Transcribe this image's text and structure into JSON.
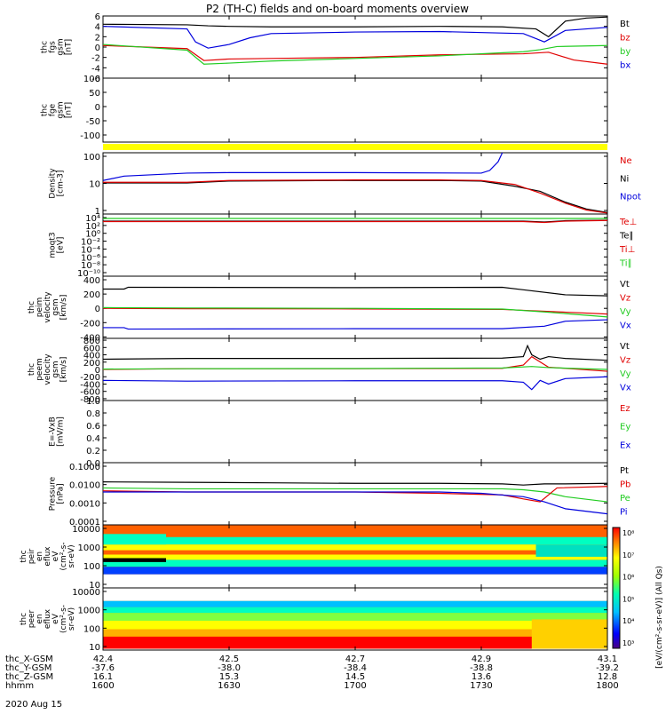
{
  "title": "P2 (TH-C) fields and on-board moments overview",
  "colors": {
    "black": "#000000",
    "red": "#e00000",
    "green": "#22cc22",
    "blue": "#0000dd",
    "yellow": "#ffff00"
  },
  "time": {
    "ticks": [
      "1600",
      "1630",
      "1700",
      "1730",
      "1800"
    ],
    "range": [
      0,
      120
    ],
    "date": "2020 Aug 15"
  },
  "orbit": {
    "labels": [
      "thc_X-GSM",
      "thc_Y-GSM",
      "thc_Z-GSM",
      "hhmm"
    ],
    "x_gsm": [
      "42.4",
      "42.5",
      "42.7",
      "42.9",
      "43.1"
    ],
    "y_gsm": [
      "-37.6",
      "-38.0",
      "-38.4",
      "-38.8",
      "-39.2"
    ],
    "z_gsm": [
      "16.1",
      "15.3",
      "14.5",
      "13.6",
      "12.8"
    ]
  },
  "chart_data": [
    {
      "id": "fgs",
      "type": "line",
      "ylabel": [
        "thc",
        "fgs",
        "gsm",
        "[nT]"
      ],
      "ylim": [
        -6,
        6
      ],
      "yticks": [
        "6",
        "4",
        "2",
        "0",
        "-2",
        "-4",
        "-6"
      ],
      "legend": [
        {
          "name": "Bt",
          "color": "#000000"
        },
        {
          "name": "bz",
          "color": "#e00000"
        },
        {
          "name": "by",
          "color": "#22cc22"
        },
        {
          "name": "bx",
          "color": "#0000dd"
        }
      ],
      "series": [
        {
          "name": "Bt",
          "x": [
            0,
            20,
            25,
            30,
            40,
            60,
            80,
            95,
            103,
            106,
            110,
            115,
            120
          ],
          "y": [
            4.4,
            4.3,
            4.1,
            4.0,
            3.9,
            3.9,
            4.0,
            3.9,
            3.5,
            2.0,
            5.0,
            5.6,
            5.8
          ]
        },
        {
          "name": "bz",
          "x": [
            0,
            20,
            24,
            30,
            40,
            60,
            80,
            100,
            106,
            112,
            120
          ],
          "y": [
            0.3,
            -0.3,
            -2.6,
            -2.3,
            -2.2,
            -2.0,
            -1.5,
            -1.3,
            -1.0,
            -2.5,
            -3.3
          ]
        },
        {
          "name": "by",
          "x": [
            0,
            20,
            24,
            30,
            40,
            60,
            80,
            100,
            104,
            108,
            120
          ],
          "y": [
            0.5,
            -0.6,
            -3.3,
            -3.1,
            -2.7,
            -2.2,
            -1.7,
            -0.9,
            -0.5,
            0.1,
            0.3
          ]
        },
        {
          "name": "bx",
          "x": [
            0,
            20,
            22,
            25,
            30,
            35,
            40,
            60,
            80,
            100,
            105,
            110,
            120
          ],
          "y": [
            4.0,
            3.5,
            1.0,
            -0.2,
            0.5,
            1.8,
            2.6,
            2.9,
            3.0,
            2.6,
            1.0,
            3.2,
            3.8
          ]
        }
      ]
    },
    {
      "id": "fgs-hi",
      "type": "line",
      "ylabel": [
        "thc",
        "fge",
        "gsm",
        "[nT]"
      ],
      "ylim": [
        -125,
        100
      ],
      "yticks": [
        "100",
        "50",
        "0",
        "-50",
        "-100"
      ],
      "legend": [],
      "series": []
    },
    {
      "id": "density",
      "type": "line",
      "ylabel": [
        "Density",
        "[cm-3]"
      ],
      "ylim": [
        0.3,
        150
      ],
      "yscale": "log",
      "yticks": [
        "100",
        "10",
        "1"
      ],
      "legend": [
        {
          "name": "Ne",
          "color": "#e00000"
        },
        {
          "name": "Ni",
          "color": "#000000"
        },
        {
          "name": "Npot",
          "color": "#0000dd"
        }
      ],
      "series": [
        {
          "name": "Npot",
          "x": [
            0,
            5,
            20,
            30,
            60,
            90,
            92,
            94,
            95
          ],
          "y": [
            9,
            14,
            19,
            20,
            20,
            19,
            25,
            60,
            200
          ]
        },
        {
          "name": "Ni",
          "x": [
            0,
            20,
            30,
            60,
            80,
            90,
            98,
            104,
            110,
            115,
            120
          ],
          "y": [
            7,
            7,
            8.5,
            9,
            9,
            8.5,
            5,
            3,
            1,
            0.5,
            0.35
          ]
        },
        {
          "name": "Ne",
          "x": [
            0,
            20,
            30,
            60,
            80,
            90,
            98,
            104,
            110,
            115,
            120
          ],
          "y": [
            7.5,
            7.5,
            9,
            9.5,
            9.5,
            9,
            6,
            2.5,
            0.9,
            0.45,
            0.33
          ]
        }
      ]
    },
    {
      "id": "temperature",
      "type": "line",
      "ylabel": [
        "moqt3",
        "[eV]"
      ],
      "ylim": [
        -10,
        4
      ],
      "yscale": "log",
      "yticks": [
        "10⁴",
        "10²",
        "10⁰",
        "10⁻²",
        "10⁻⁴",
        "10⁻⁶",
        "10⁻⁸",
        "10⁻¹⁰"
      ],
      "legend": [
        {
          "name": "Te⊥",
          "color": "#e00000"
        },
        {
          "name": "Te∥",
          "color": "#000000"
        },
        {
          "name": "Ti⊥",
          "color": "#e00000"
        },
        {
          "name": "Ti∥",
          "color": "#22cc22"
        }
      ],
      "series": [
        {
          "name": "Ti∥",
          "x": [
            0,
            120
          ],
          "y": [
            3.0,
            3.0
          ]
        },
        {
          "name": "Te∥",
          "x": [
            0,
            100,
            105,
            110,
            120
          ],
          "y": [
            2.4,
            2.4,
            2.2,
            2.5,
            2.6
          ]
        },
        {
          "name": "Te⊥",
          "x": [
            0,
            100,
            105,
            110,
            120
          ],
          "y": [
            2.3,
            2.3,
            2.1,
            2.4,
            2.55
          ]
        }
      ]
    },
    {
      "id": "vi",
      "type": "line",
      "ylabel": [
        "thc",
        "peim",
        "velocity",
        "gsm",
        "[km/s]"
      ],
      "ylim": [
        -420,
        450
      ],
      "yticks": [
        "400",
        "200",
        "0",
        "-200",
        "-400"
      ],
      "legend": [
        {
          "name": "Vt",
          "color": "#000000"
        },
        {
          "name": "Vz",
          "color": "#e00000"
        },
        {
          "name": "Vy",
          "color": "#22cc22"
        },
        {
          "name": "Vx",
          "color": "#0000dd"
        }
      ],
      "series": [
        {
          "name": "Vt",
          "x": [
            0,
            5,
            6,
            60,
            95,
            100,
            110,
            120
          ],
          "y": [
            270,
            270,
            295,
            290,
            295,
            260,
            190,
            175
          ]
        },
        {
          "name": "Vz",
          "x": [
            0,
            20,
            60,
            95,
            105,
            120
          ],
          "y": [
            0,
            -5,
            -8,
            -15,
            -40,
            -80
          ]
        },
        {
          "name": "Vy",
          "x": [
            0,
            20,
            60,
            95,
            105,
            120
          ],
          "y": [
            10,
            5,
            0,
            -10,
            -50,
            -120
          ]
        },
        {
          "name": "Vx",
          "x": [
            0,
            5,
            6,
            60,
            95,
            105,
            110,
            120
          ],
          "y": [
            -270,
            -270,
            -290,
            -285,
            -285,
            -250,
            -180,
            -160
          ]
        }
      ]
    },
    {
      "id": "ve",
      "type": "line",
      "ylabel": [
        "thc",
        "peem",
        "velocity",
        "gsm",
        "[km/s]"
      ],
      "ylim": [
        -850,
        850
      ],
      "yticks": [
        "800",
        "600",
        "400",
        "200",
        "0",
        "-200",
        "-400",
        "-600",
        "-800"
      ],
      "legend": [
        {
          "name": "Vt",
          "color": "#000000"
        },
        {
          "name": "Vz",
          "color": "#e00000"
        },
        {
          "name": "Vy",
          "color": "#22cc22"
        },
        {
          "name": "Vx",
          "color": "#0000dd"
        }
      ],
      "series": [
        {
          "name": "Vt",
          "x": [
            0,
            20,
            60,
            95,
            100,
            101,
            102,
            104,
            106,
            110,
            120
          ],
          "y": [
            280,
            300,
            300,
            310,
            350,
            650,
            400,
            280,
            350,
            300,
            250
          ]
        },
        {
          "name": "Vz",
          "x": [
            0,
            20,
            60,
            95,
            100,
            102,
            106,
            120
          ],
          "y": [
            0,
            20,
            20,
            30,
            120,
            350,
            60,
            -50
          ]
        },
        {
          "name": "Vy",
          "x": [
            0,
            20,
            60,
            95,
            102,
            106,
            120
          ],
          "y": [
            10,
            20,
            25,
            40,
            80,
            50,
            0
          ]
        },
        {
          "name": "Vx",
          "x": [
            0,
            20,
            60,
            95,
            100,
            102,
            104,
            106,
            110,
            120
          ],
          "y": [
            -300,
            -320,
            -310,
            -310,
            -350,
            -550,
            -300,
            -400,
            -250,
            -200
          ]
        }
      ]
    },
    {
      "id": "efield",
      "type": "line",
      "ylabel": [
        "E=-VxB",
        "[mV/m]"
      ],
      "ylim": [
        0,
        1
      ],
      "yticks": [
        "1.0",
        "0.8",
        "0.6",
        "0.4",
        "0.2",
        "0.0"
      ],
      "legend": [
        {
          "name": "Ez",
          "color": "#e00000"
        },
        {
          "name": "Ey",
          "color": "#22cc22"
        },
        {
          "name": "Ex",
          "color": "#0000dd"
        }
      ],
      "series": []
    },
    {
      "id": "pressure",
      "type": "line",
      "ylabel": [
        "Pressure",
        "[nPa]"
      ],
      "ylim": [
        0.0003,
        0.15
      ],
      "yscale": "log",
      "yticks": [
        "0.1000",
        "0.0100",
        "0.0010",
        "0.0001"
      ],
      "legend": [
        {
          "name": "Pt",
          "color": "#000000"
        },
        {
          "name": "Pb",
          "color": "#e00000"
        },
        {
          "name": "Pe",
          "color": "#22cc22"
        },
        {
          "name": "Pi",
          "color": "#0000dd"
        }
      ],
      "series": [
        {
          "name": "Pt",
          "x": [
            0,
            20,
            40,
            60,
            80,
            95,
            100,
            105,
            110,
            120
          ],
          "y": [
            0.022,
            0.021,
            0.02,
            0.019,
            0.019,
            0.018,
            0.016,
            0.018,
            0.018,
            0.019
          ]
        },
        {
          "name": "Pe",
          "x": [
            0,
            20,
            40,
            60,
            80,
            95,
            100,
            105,
            110,
            120
          ],
          "y": [
            0.012,
            0.011,
            0.011,
            0.011,
            0.011,
            0.011,
            0.01,
            0.008,
            0.005,
            0.003
          ]
        },
        {
          "name": "Pb",
          "x": [
            0,
            20,
            40,
            60,
            80,
            95,
            100,
            104,
            108,
            120
          ],
          "y": [
            0.009,
            0.008,
            0.008,
            0.008,
            0.007,
            0.006,
            0.004,
            0.003,
            0.012,
            0.014
          ]
        },
        {
          "name": "Pi",
          "x": [
            0,
            20,
            40,
            60,
            80,
            90,
            100,
            105,
            110,
            120
          ],
          "y": [
            0.008,
            0.008,
            0.008,
            0.008,
            0.008,
            0.007,
            0.005,
            0.003,
            0.0015,
            0.0009
          ]
        }
      ]
    },
    {
      "id": "peir",
      "type": "heatmap",
      "ylabel": [
        "thc",
        "peir",
        "en",
        "eflux",
        "eV",
        "(cm²-s-",
        "sr-eV)"
      ],
      "ylim": [
        5,
        20000
      ],
      "yscale": "log",
      "yticks": [
        "10000",
        "1000",
        "100",
        "10"
      ]
    },
    {
      "id": "peer",
      "type": "heatmap",
      "ylabel": [
        "thc",
        "peer",
        "en",
        "eflux",
        "eV",
        "(cm²-s-",
        "sr-eV)"
      ],
      "ylim": [
        5,
        20000
      ],
      "yscale": "log",
      "yticks": [
        "10000",
        "1000",
        "100",
        "10"
      ]
    }
  ],
  "colorbar": {
    "ticks": [
      "10⁸",
      "10⁷",
      "10⁶",
      "10⁵",
      "10⁴",
      "10³"
    ],
    "label": "[eV/(cm²-s-sr-eV)] (All Qs)"
  }
}
